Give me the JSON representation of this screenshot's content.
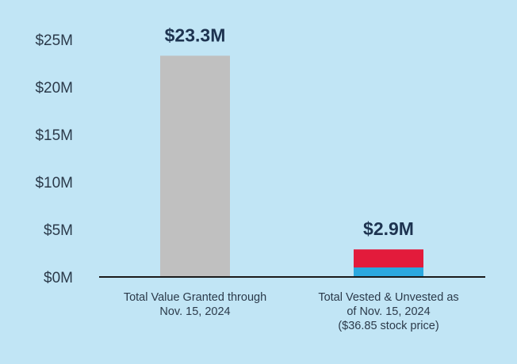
{
  "chart_data": {
    "type": "bar",
    "title": "",
    "xlabel": "",
    "ylabel": "",
    "ylim": [
      0,
      25
    ],
    "y_ticks": [
      0,
      5,
      10,
      15,
      20,
      25
    ],
    "y_tick_labels": [
      "$0M",
      "$5M",
      "$10M",
      "$15M",
      "$20M",
      "$25M"
    ],
    "categories": [
      [
        "Total Value Granted through",
        "Nov. 15, 2024"
      ],
      [
        "Total Vested & Unvested as",
        "of Nov. 15, 2024",
        "($36.85 stock price)"
      ]
    ],
    "series": [
      {
        "name": "Total Value Granted",
        "color": "#c0c0c0",
        "values": [
          23.3,
          0
        ]
      },
      {
        "name": "Vested",
        "color": "#2aa8df",
        "values": [
          0,
          1.0
        ]
      },
      {
        "name": "Unvested",
        "color": "#e31b3b",
        "values": [
          0,
          1.9
        ]
      }
    ],
    "totals": [
      23.3,
      2.9
    ],
    "data_labels": [
      "$23.3M",
      "$2.9M"
    ],
    "gridlines": false
  }
}
